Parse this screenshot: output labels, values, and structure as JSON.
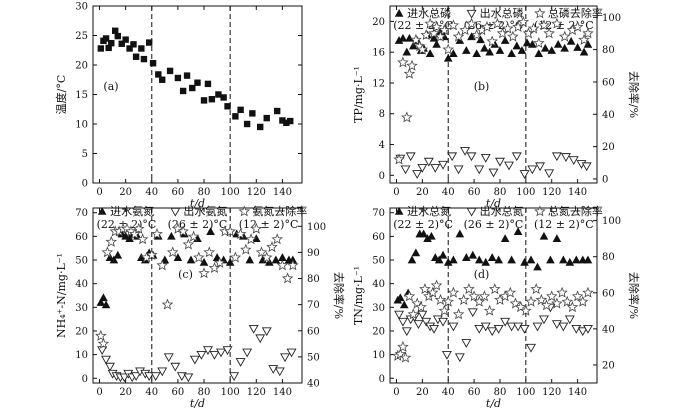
{
  "figure": {
    "x_axis_label": "t/d",
    "condition_labels": [
      "(22 ± 2)°C",
      "(26 ± 2)°C",
      "(12 ± 2)°C"
    ]
  },
  "chart_data": [
    {
      "id": "a",
      "type": "scatter",
      "panel_label": "(a)",
      "ylabel": "温度/°C",
      "xlim": [
        -5,
        155
      ],
      "xticks": [
        0,
        20,
        40,
        60,
        80,
        100,
        120,
        140
      ],
      "ylim": [
        0,
        30
      ],
      "yticks": [
        0,
        5,
        10,
        15,
        20,
        25,
        30
      ],
      "dividers": [
        40,
        100
      ],
      "series": [
        {
          "marker": "square-filled",
          "x": [
            1,
            3,
            5,
            7,
            9,
            12,
            14,
            17,
            20,
            23,
            26,
            28,
            32,
            34,
            38,
            41,
            45,
            48,
            54,
            60,
            64,
            67,
            71,
            75,
            80,
            83,
            86,
            91,
            95,
            98,
            104,
            108,
            113,
            117,
            123,
            128,
            136,
            140,
            143,
            146
          ],
          "y": [
            22.8,
            24.1,
            24.5,
            22.9,
            23.7,
            25.8,
            24.9,
            23.6,
            24.3,
            22.8,
            23.5,
            21.4,
            22.8,
            21.0,
            23.8,
            20.3,
            18.4,
            17.5,
            19.0,
            17.8,
            15.6,
            18.2,
            16.1,
            17.0,
            14.0,
            16.8,
            14.2,
            15.0,
            14.5,
            13.0,
            11.3,
            12.4,
            10.0,
            11.8,
            9.5,
            11.0,
            12.2,
            10.6,
            10.2,
            10.5
          ]
        }
      ]
    },
    {
      "id": "b",
      "type": "scatter",
      "panel_label": "(b)",
      "ylabel": "TP/mg·L⁻¹",
      "y2label": "去除率/%",
      "xlim": [
        -5,
        155
      ],
      "xticks": [
        0,
        20,
        40,
        60,
        80,
        100,
        120,
        140
      ],
      "ylim": [
        -1,
        22
      ],
      "yticks": [
        0,
        4,
        8,
        12,
        16,
        20
      ],
      "y2lim": [
        -2.5,
        107
      ],
      "y2ticks": [
        0,
        20,
        40,
        60,
        80,
        100
      ],
      "dividers": [
        40,
        100
      ],
      "legend": [
        "进水总磷",
        "出水总磷",
        "总磷去除率"
      ],
      "series": [
        {
          "name": "进水总磷",
          "marker": "triangle-up-filled",
          "axis": "left",
          "x": [
            2,
            5,
            8,
            10,
            13,
            16,
            19,
            21,
            24,
            26,
            29,
            31,
            34,
            37,
            40,
            44,
            49,
            54,
            58,
            62,
            65,
            68,
            72,
            76,
            80,
            84,
            89,
            93,
            97,
            101,
            105,
            110,
            115,
            120,
            125,
            130,
            135,
            140,
            145,
            148
          ],
          "y": [
            17.5,
            17.8,
            16.0,
            17.8,
            16.8,
            17.5,
            16.2,
            16.5,
            18.2,
            15.8,
            17.8,
            17.0,
            18.6,
            18.0,
            15.2,
            15.8,
            17.5,
            16.2,
            18.0,
            15.8,
            17.6,
            16.5,
            16.0,
            17.0,
            16.2,
            17.5,
            15.8,
            16.8,
            16.2,
            17.2,
            17.0,
            15.8,
            16.5,
            16.2,
            17.0,
            16.5,
            17.4,
            16.6,
            16.0,
            17.0
          ]
        },
        {
          "name": "出水总磷",
          "marker": "triangle-down-open",
          "axis": "left",
          "x": [
            3,
            7,
            11,
            16,
            20,
            25,
            30,
            36,
            43,
            48,
            53,
            58,
            64,
            69,
            75,
            80,
            87,
            93,
            99,
            105,
            111,
            118,
            124,
            131,
            137,
            143,
            147
          ],
          "y": [
            2.2,
            0.8,
            2.5,
            0.2,
            1.0,
            1.8,
            1.0,
            1.4,
            2.5,
            0.8,
            3.2,
            2.5,
            0.8,
            2.3,
            0.4,
            1.8,
            1.3,
            2.5,
            0.2,
            0.8,
            1.2,
            0.3,
            2.5,
            2.4,
            2.0,
            1.5,
            1.2
          ]
        },
        {
          "name": "总磷去除率",
          "marker": "star-open",
          "axis": "right",
          "x": [
            2,
            5,
            8,
            10,
            12,
            15,
            18,
            20,
            23,
            26,
            29,
            31,
            34,
            37,
            40,
            44,
            48,
            53,
            58,
            62,
            66,
            70,
            74,
            78,
            82,
            86,
            90,
            94,
            98,
            102,
            106,
            110,
            114,
            118,
            124,
            130,
            136,
            140,
            145,
            148
          ],
          "y": [
            12,
            72,
            38,
            65,
            70,
            86,
            82,
            80,
            89,
            96,
            90,
            94,
            88,
            92,
            80,
            95,
            88,
            92,
            96,
            89,
            92,
            94,
            85,
            96,
            90,
            93,
            88,
            94,
            97,
            90,
            93,
            84,
            95,
            90,
            96,
            88,
            92,
            94,
            86,
            90
          ]
        }
      ]
    },
    {
      "id": "c",
      "type": "scatter",
      "panel_label": "(c)",
      "ylabel": "NH₄⁺-N/mg·L⁻¹",
      "y2label": "去除率/%",
      "xlim": [
        -5,
        155
      ],
      "xticks": [
        0,
        20,
        40,
        60,
        80,
        100,
        120,
        140
      ],
      "ylim": [
        -2,
        72
      ],
      "yticks": [
        0,
        10,
        20,
        30,
        40,
        50,
        60,
        70
      ],
      "y2lim": [
        40,
        107
      ],
      "y2ticks": [
        40,
        50,
        60,
        70,
        80,
        90,
        100
      ],
      "dividers": [
        40,
        100
      ],
      "legend": [
        "进水氨氮",
        "出水氨氮",
        "氨氮去除率"
      ],
      "series": [
        {
          "name": "进水氨氮",
          "marker": "triangle-up-filled",
          "axis": "left",
          "x": [
            1,
            3,
            5,
            8,
            11,
            14,
            17,
            20,
            23,
            26,
            29,
            32,
            35,
            38,
            41,
            45,
            50,
            55,
            60,
            65,
            70,
            75,
            80,
            85,
            90,
            95,
            100,
            105,
            110,
            115,
            120,
            125,
            130,
            135,
            140,
            145,
            148
          ],
          "y": [
            32,
            34,
            31,
            51,
            50,
            52,
            61,
            60,
            59,
            61,
            60,
            51,
            50,
            53,
            52,
            60,
            50,
            60,
            51,
            61,
            50,
            59,
            49,
            62,
            51,
            50,
            49,
            61,
            60,
            50,
            59,
            50,
            49,
            50,
            51,
            50,
            50
          ]
        },
        {
          "name": "出水氨氮",
          "marker": "triangle-down-open",
          "axis": "left",
          "x": [
            2,
            5,
            8,
            10,
            13,
            16,
            19,
            22,
            25,
            28,
            31,
            35,
            38,
            43,
            48,
            53,
            58,
            63,
            68,
            73,
            78,
            83,
            88,
            93,
            98,
            103,
            108,
            113,
            118,
            123,
            128,
            133,
            138,
            142,
            147
          ],
          "y": [
            12,
            8,
            5,
            2,
            1,
            0.5,
            0.5,
            2,
            0.5,
            1,
            3,
            2,
            1,
            1,
            3,
            9,
            5,
            1,
            0.5,
            8,
            10,
            12,
            10,
            11,
            12,
            1,
            7,
            11,
            21,
            17,
            20,
            4,
            3,
            9,
            11
          ]
        },
        {
          "name": "氨氮去除率",
          "marker": "star-open",
          "axis": "right",
          "x": [
            1,
            3,
            6,
            9,
            12,
            15,
            18,
            21,
            24,
            27,
            30,
            33,
            36,
            40,
            44,
            48,
            52,
            56,
            60,
            64,
            68,
            72,
            76,
            80,
            84,
            88,
            92,
            96,
            100,
            104,
            108,
            112,
            116,
            120,
            124,
            128,
            132,
            136,
            140,
            144,
            148
          ],
          "y": [
            58,
            55,
            90,
            94,
            98,
            98,
            99,
            99,
            98,
            97,
            99,
            95,
            88,
            89,
            97,
            85,
            70,
            90,
            99,
            98,
            93,
            96,
            88,
            82,
            90,
            84,
            86,
            98,
            98,
            88,
            97,
            91,
            95,
            99,
            90,
            88,
            92,
            95,
            85,
            80,
            85
          ]
        }
      ]
    },
    {
      "id": "d",
      "type": "scatter",
      "panel_label": "(d)",
      "ylabel": "TN/mg·L⁻¹",
      "y2label": "去除率/%",
      "xlim": [
        -5,
        155
      ],
      "xticks": [
        0,
        20,
        40,
        60,
        80,
        100,
        120,
        140
      ],
      "ylim": [
        -2,
        72
      ],
      "yticks": [
        0,
        10,
        20,
        30,
        40,
        50,
        60,
        70
      ],
      "y2lim": [
        10,
        107
      ],
      "y2ticks": [
        20,
        40,
        60,
        80,
        100
      ],
      "dividers": [
        40,
        100
      ],
      "legend": [
        "进水总氮",
        "出水总氮",
        "总氮去除率"
      ],
      "series": [
        {
          "name": "进水总氮",
          "marker": "triangle-up-filled",
          "axis": "left",
          "x": [
            1,
            3,
            6,
            9,
            12,
            15,
            18,
            21,
            24,
            27,
            30,
            33,
            36,
            40,
            44,
            49,
            54,
            59,
            64,
            69,
            74,
            79,
            84,
            89,
            94,
            99,
            104,
            109,
            114,
            119,
            124,
            129,
            134,
            139,
            144,
            148
          ],
          "y": [
            33,
            34,
            31,
            36,
            50,
            53,
            61,
            61,
            59,
            60,
            51,
            50,
            52,
            49,
            50,
            61,
            51,
            52,
            50,
            49,
            51,
            50,
            59,
            50,
            62,
            49,
            50,
            47,
            60,
            50,
            59,
            50,
            49,
            50,
            50,
            50
          ]
        },
        {
          "name": "出水总氮",
          "marker": "triangle-down-open",
          "axis": "left",
          "x": [
            2,
            5,
            8,
            11,
            14,
            17,
            20,
            23,
            26,
            29,
            32,
            36,
            39,
            44,
            49,
            54,
            59,
            64,
            69,
            74,
            79,
            84,
            89,
            94,
            99,
            104,
            109,
            114,
            119,
            124,
            129,
            134,
            139,
            144,
            148
          ],
          "y": [
            27,
            24,
            20,
            25,
            26,
            23,
            27,
            24,
            22,
            21,
            25,
            24,
            10,
            22,
            9,
            15,
            28,
            21,
            22,
            20,
            21,
            24,
            22,
            22,
            21,
            13,
            22,
            25,
            30,
            23,
            22,
            25,
            21,
            20,
            21
          ]
        },
        {
          "name": "总氮去除率",
          "marker": "star-open",
          "axis": "right",
          "x": [
            1,
            3,
            5,
            7,
            10,
            13,
            16,
            19,
            22,
            25,
            28,
            31,
            34,
            37,
            40,
            44,
            48,
            52,
            56,
            60,
            64,
            68,
            72,
            76,
            80,
            84,
            88,
            92,
            96,
            100,
            104,
            108,
            112,
            116,
            120,
            124,
            128,
            132,
            136,
            140,
            144,
            148
          ],
          "y": [
            25,
            26,
            30,
            24,
            58,
            48,
            54,
            52,
            62,
            58,
            60,
            64,
            56,
            50,
            55,
            60,
            48,
            56,
            62,
            58,
            55,
            58,
            50,
            62,
            56,
            58,
            60,
            54,
            52,
            50,
            55,
            62,
            56,
            53,
            58,
            54,
            60,
            55,
            52,
            58,
            55,
            60
          ]
        }
      ]
    }
  ]
}
